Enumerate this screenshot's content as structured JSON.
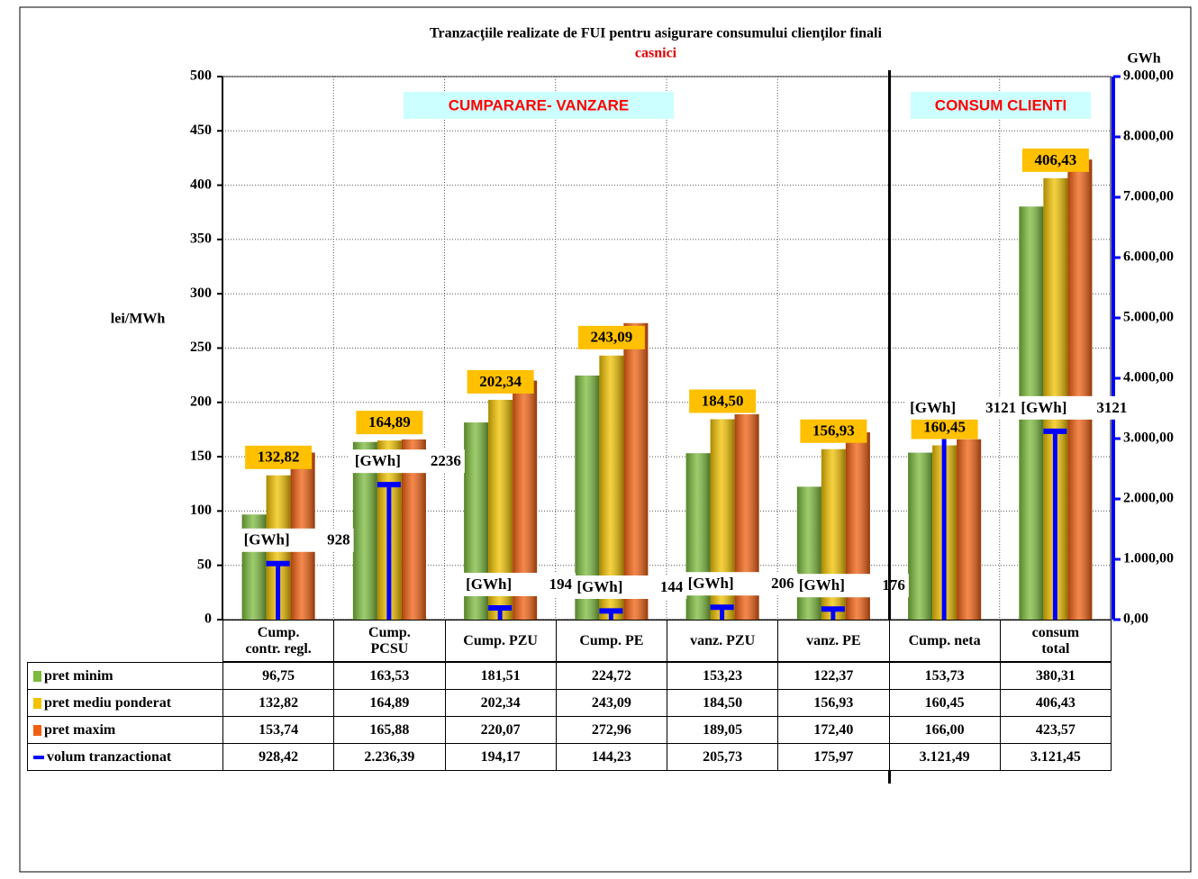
{
  "chart_data": {
    "type": "bar",
    "title": "Tranzacţiile realizate de FUI pentru asigurare consumului clienţilor finali",
    "subtitle": "casnici",
    "y_label": "lei/MWh",
    "y2_label": "GWh",
    "annotations": [
      "CUMPARARE- VANZARE",
      "CONSUM CLIENTI"
    ],
    "categories": [
      "Cump.\ncontr. regl.",
      "Cump.\nPCSU",
      "Cump. PZU",
      "Cump. PE",
      "vanz. PZU",
      "vanz. PE",
      "Cump. neta",
      "consum\ntotal"
    ],
    "series": [
      {
        "name": "pret minim",
        "color": "#7cbb3c",
        "values": [
          96.75,
          163.53,
          181.51,
          224.72,
          153.23,
          122.37,
          153.73,
          380.31
        ],
        "value_labels": [
          "96,75",
          "163,53",
          "181,51",
          "224,72",
          "153,23",
          "122,37",
          "153,73",
          "380,31"
        ]
      },
      {
        "name": "pret mediu ponderat",
        "color": "#f2c200",
        "values": [
          132.82,
          164.89,
          202.34,
          243.09,
          184.5,
          156.93,
          160.45,
          406.43
        ],
        "value_labels": [
          "132,82",
          "164,89",
          "202,34",
          "243,09",
          "184,50",
          "156,93",
          "160,45",
          "406,43"
        ]
      },
      {
        "name": "pret maxim",
        "color": "#f06010",
        "values": [
          153.74,
          165.88,
          220.07,
          272.96,
          189.05,
          172.4,
          166.0,
          423.57
        ],
        "value_labels": [
          "153,74",
          "165,88",
          "220,07",
          "272,96",
          "189,05",
          "172,40",
          "166,00",
          "423,57"
        ]
      },
      {
        "name": "volum tranzactionat",
        "color": "#0000ff",
        "axis": "y2",
        "values": [
          928.42,
          2236.39,
          194.17,
          144.23,
          205.73,
          175.97,
          3121.49,
          3121.45
        ],
        "value_labels": [
          "928,42",
          "2.236,39",
          "194,17",
          "144,23",
          "205,73",
          "175,97",
          "3.121,49",
          "3.121,45"
        ]
      }
    ],
    "data_label_unit": "[GWh]",
    "data_labels": [
      "928",
      "2236",
      "194",
      "144",
      "206",
      "176",
      "3121",
      "3121"
    ],
    "ylim": [
      0,
      500
    ],
    "yticks": [
      0,
      50,
      100,
      150,
      200,
      250,
      300,
      350,
      400,
      450,
      500
    ],
    "y2lim": [
      0,
      9000
    ],
    "y2ticks": [
      {
        "value": 0,
        "label": "0,00"
      },
      {
        "value": 1000,
        "label": "1.000,00"
      },
      {
        "value": 2000,
        "label": "2.000,00"
      },
      {
        "value": 3000,
        "label": "3.000,00"
      },
      {
        "value": 4000,
        "label": "4.000,00"
      },
      {
        "value": 5000,
        "label": "5.000,00"
      },
      {
        "value": 6000,
        "label": "6.000,00"
      },
      {
        "value": 7000,
        "label": "7.000,00"
      },
      {
        "value": 8000,
        "label": "8.000,00"
      },
      {
        "value": 9000,
        "label": "9.000,00"
      }
    ],
    "grid": true
  }
}
